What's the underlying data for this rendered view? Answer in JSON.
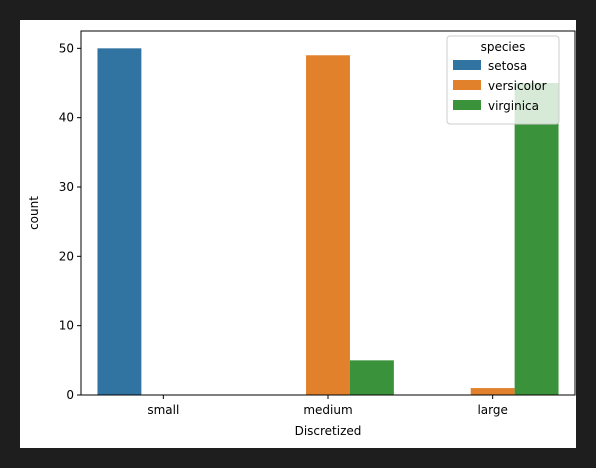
{
  "colors": {
    "background": "#1e1e1e",
    "plot_background": "#ffffff",
    "setosa": "#3274a1",
    "versicolor": "#e1812c",
    "virginica": "#3a923a"
  },
  "chart_data": {
    "type": "bar",
    "categories": [
      "small",
      "medium",
      "large"
    ],
    "series": [
      {
        "name": "setosa",
        "values": [
          50,
          0,
          0
        ]
      },
      {
        "name": "versicolor",
        "values": [
          0,
          49,
          1
        ]
      },
      {
        "name": "virginica",
        "values": [
          0,
          5,
          45
        ]
      }
    ],
    "xlabel": "Discretized",
    "ylabel": "count",
    "ylim": [
      0,
      52.5
    ],
    "yticks": [
      0,
      10,
      20,
      30,
      40,
      50
    ],
    "grid": false,
    "legend": {
      "title": "species",
      "placement": "top-right"
    }
  }
}
